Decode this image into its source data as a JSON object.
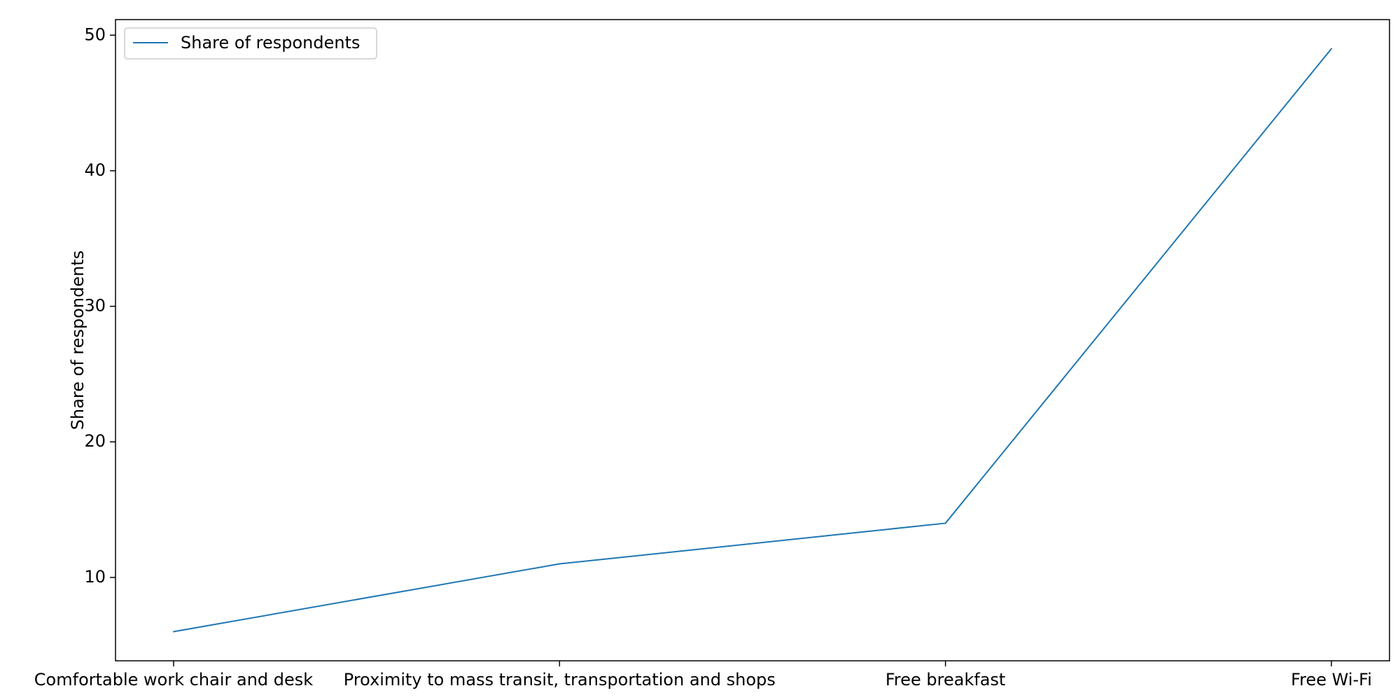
{
  "chart_data": {
    "type": "line",
    "title": "",
    "xlabel": "",
    "ylabel": "Share of respondents",
    "categories": [
      "Comfortable work chair and desk",
      "Proximity to mass transit, transportation and shops",
      "Free breakfast",
      "Free Wi-Fi"
    ],
    "series": [
      {
        "name": "Share of respondents",
        "values": [
          6,
          11,
          14,
          49
        ],
        "color": "#1f77b4"
      }
    ],
    "ylim": [
      3.85,
      51.15
    ],
    "yticks": [
      10,
      20,
      30,
      40,
      50
    ],
    "grid": false,
    "legend_position": "top-left"
  }
}
